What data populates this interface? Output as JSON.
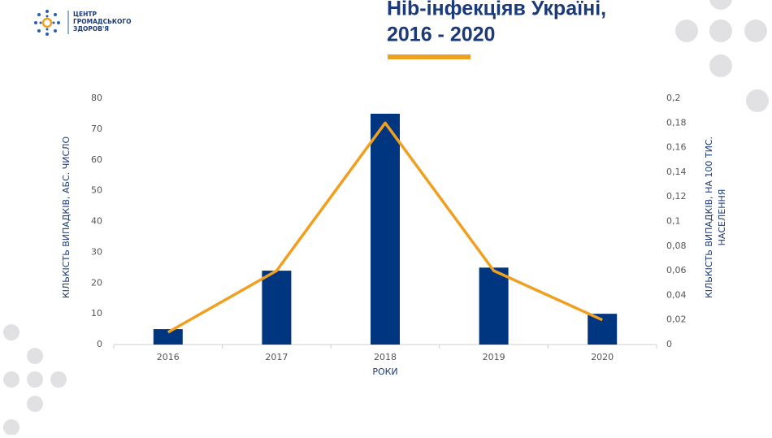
{
  "logo": {
    "lines": [
      "ЦЕНТР",
      "ГРОМАДСЬКОГО",
      "ЗДОРОВ'Я"
    ]
  },
  "chart_data": {
    "type": "bar-line",
    "title_lines": [
      "Hib-інфекціяв Україні,",
      "2016 - 2020"
    ],
    "xlabel": "РОКИ",
    "ylabel": "КІЛЬКІСТЬ ВИПАДКІВ, АБС. ЧИСЛО",
    "y2label": [
      "КІЛЬКІСТЬ ВИПАДКІВ, НА 100 ТИС.",
      "НАСЕЛЕННЯ"
    ],
    "categories": [
      "2016",
      "2017",
      "2018",
      "2019",
      "2020"
    ],
    "series": [
      {
        "type": "bar",
        "color": "#003580",
        "values": [
          5,
          24,
          75,
          25,
          10
        ]
      },
      {
        "type": "line",
        "axis": "y2",
        "color": "#f0a020",
        "values": [
          0.01,
          0.06,
          0.18,
          0.06,
          0.02
        ]
      }
    ],
    "ylim": [
      0,
      80
    ],
    "yticks": [
      0,
      10,
      20,
      30,
      40,
      50,
      60,
      70,
      80
    ],
    "y2lim": [
      0,
      0.2
    ],
    "y2ticks": [
      0,
      {
        "value": 0.02,
        "label": "0,02"
      },
      {
        "value": 0.04,
        "label": "0,04"
      },
      {
        "value": 0.06,
        "label": "0,06"
      },
      {
        "value": 0.08,
        "label": "0,08"
      },
      {
        "value": 0.1,
        "label": "0,1"
      },
      {
        "value": 0.12,
        "label": "0,12"
      },
      {
        "value": 0.14,
        "label": "0,14"
      },
      {
        "value": 0.16,
        "label": "0,16"
      },
      {
        "value": 0.18,
        "label": "0,18"
      },
      {
        "value": 0.2,
        "label": "0,2"
      }
    ]
  }
}
